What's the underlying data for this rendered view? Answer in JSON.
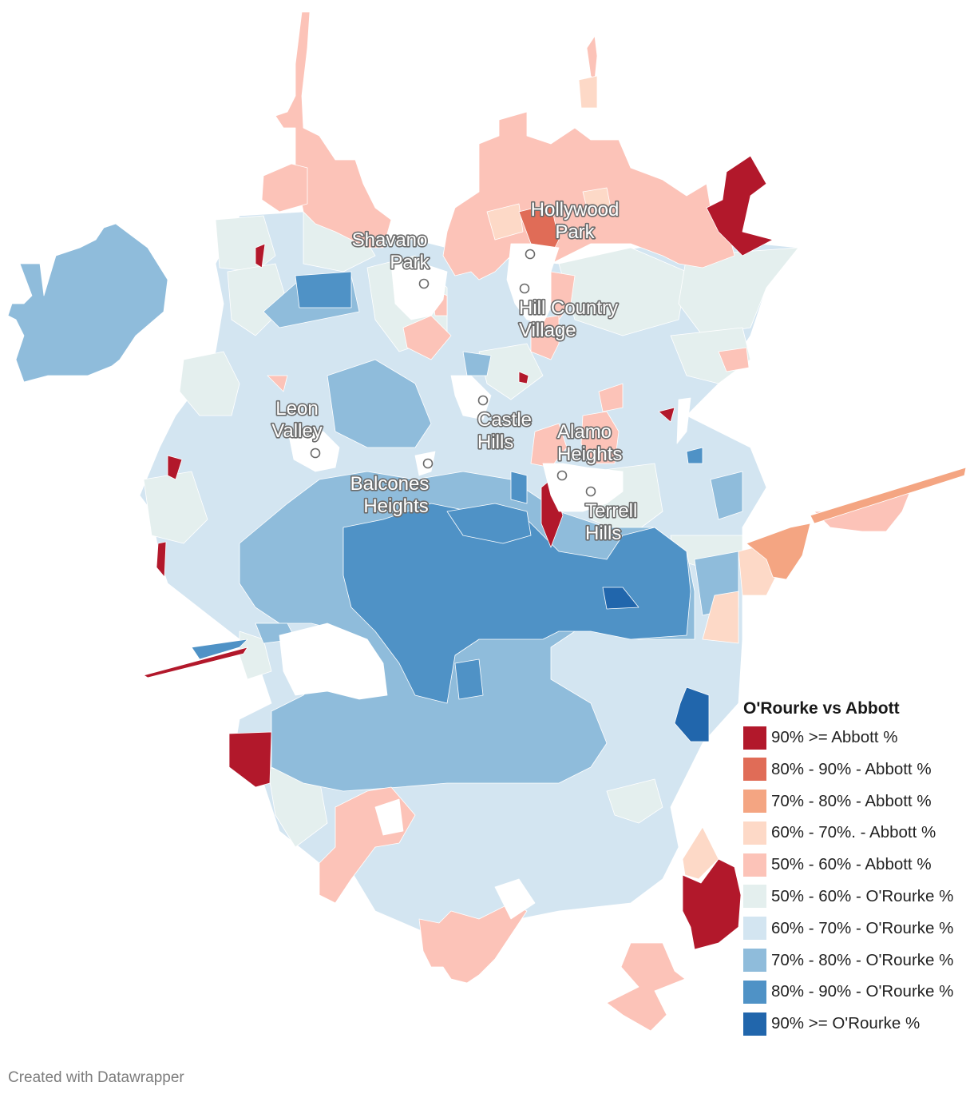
{
  "legend": {
    "title": "O'Rourke vs Abbott",
    "items": [
      {
        "label": "90% >= Abbott %",
        "color": "#b2182b"
      },
      {
        "label": "80% - 90% - Abbott %",
        "color": "#e06c57"
      },
      {
        "label": "70% - 80% - Abbott %",
        "color": "#f4a582"
      },
      {
        "label": "60% - 70%. - Abbott %",
        "color": "#fdd9c7"
      },
      {
        "label": "50% - 60% - Abbott %",
        "color": "#fcc3b8"
      },
      {
        "label": "50% - 60% - O'Rourke %",
        "color": "#e4efee"
      },
      {
        "label": "60% - 70% - O'Rourke %",
        "color": "#d3e5f1"
      },
      {
        "label": "70% - 80% - O'Rourke %",
        "color": "#8fbcdb"
      },
      {
        "label": "80% - 90% - O'Rourke %",
        "color": "#4f92c6"
      },
      {
        "label": "90% >= O'Rourke %",
        "color": "#2166ac"
      }
    ]
  },
  "cities": [
    {
      "id": "hollywood-park",
      "lines": [
        "Hollywood",
        "Park"
      ]
    },
    {
      "id": "shavano-park",
      "lines": [
        "Shavano",
        "Park"
      ]
    },
    {
      "id": "hill-country-village",
      "lines": [
        "Hill Country",
        "Village"
      ]
    },
    {
      "id": "leon-valley",
      "lines": [
        "Leon",
        "Valley"
      ]
    },
    {
      "id": "castle-hills",
      "lines": [
        "Castle",
        "Hills"
      ]
    },
    {
      "id": "alamo-heights",
      "lines": [
        "Alamo",
        "Heights"
      ]
    },
    {
      "id": "balcones-heights",
      "lines": [
        "Balcones",
        "Heights"
      ]
    },
    {
      "id": "terrell-hills",
      "lines": [
        "Terrell",
        "Hills"
      ]
    }
  ],
  "credit": "Created with Datawrapper"
}
